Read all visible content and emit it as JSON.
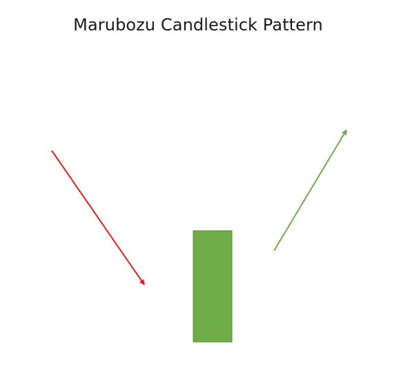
{
  "title": "Marubozu Candlestick Pattern",
  "elements": {
    "downtrend_arrow": {
      "direction": "down",
      "color": "#ee1c1c"
    },
    "candle": {
      "type": "bullish marubozu",
      "color": "#70ad47",
      "border": "#5a8c3a"
    },
    "uptrend_arrow": {
      "direction": "up",
      "color": "#70ad47"
    }
  }
}
